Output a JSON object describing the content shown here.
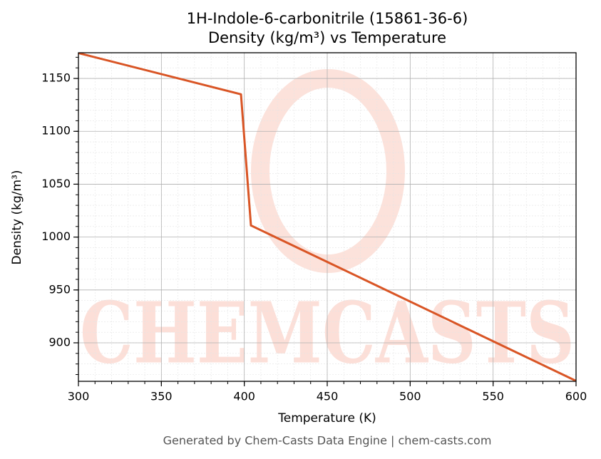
{
  "chart_data": {
    "type": "line",
    "title": "1H-Indole-6-carbonitrile (15861-36-6)",
    "subtitle": "Density (kg/m³) vs Temperature",
    "x_label": "Temperature (K)",
    "y_label": "Density (kg/m³)",
    "footer": "Generated by Chem-Casts Data Engine | chem-casts.com",
    "watermark": "CHEMCASTS",
    "x": [
      300,
      398,
      404,
      600
    ],
    "series": [
      {
        "name": "Density",
        "color": "#d95525",
        "values": [
          1174,
          1135,
          1011,
          864
        ]
      }
    ],
    "xlim": [
      300,
      600
    ],
    "xticks": [
      300,
      350,
      400,
      450,
      500,
      550,
      600
    ],
    "ylim": [
      863.6,
      1174.3
    ],
    "yticks": [
      900,
      950,
      1000,
      1050,
      1100,
      1150
    ],
    "grid": true,
    "minor_grid": true
  }
}
